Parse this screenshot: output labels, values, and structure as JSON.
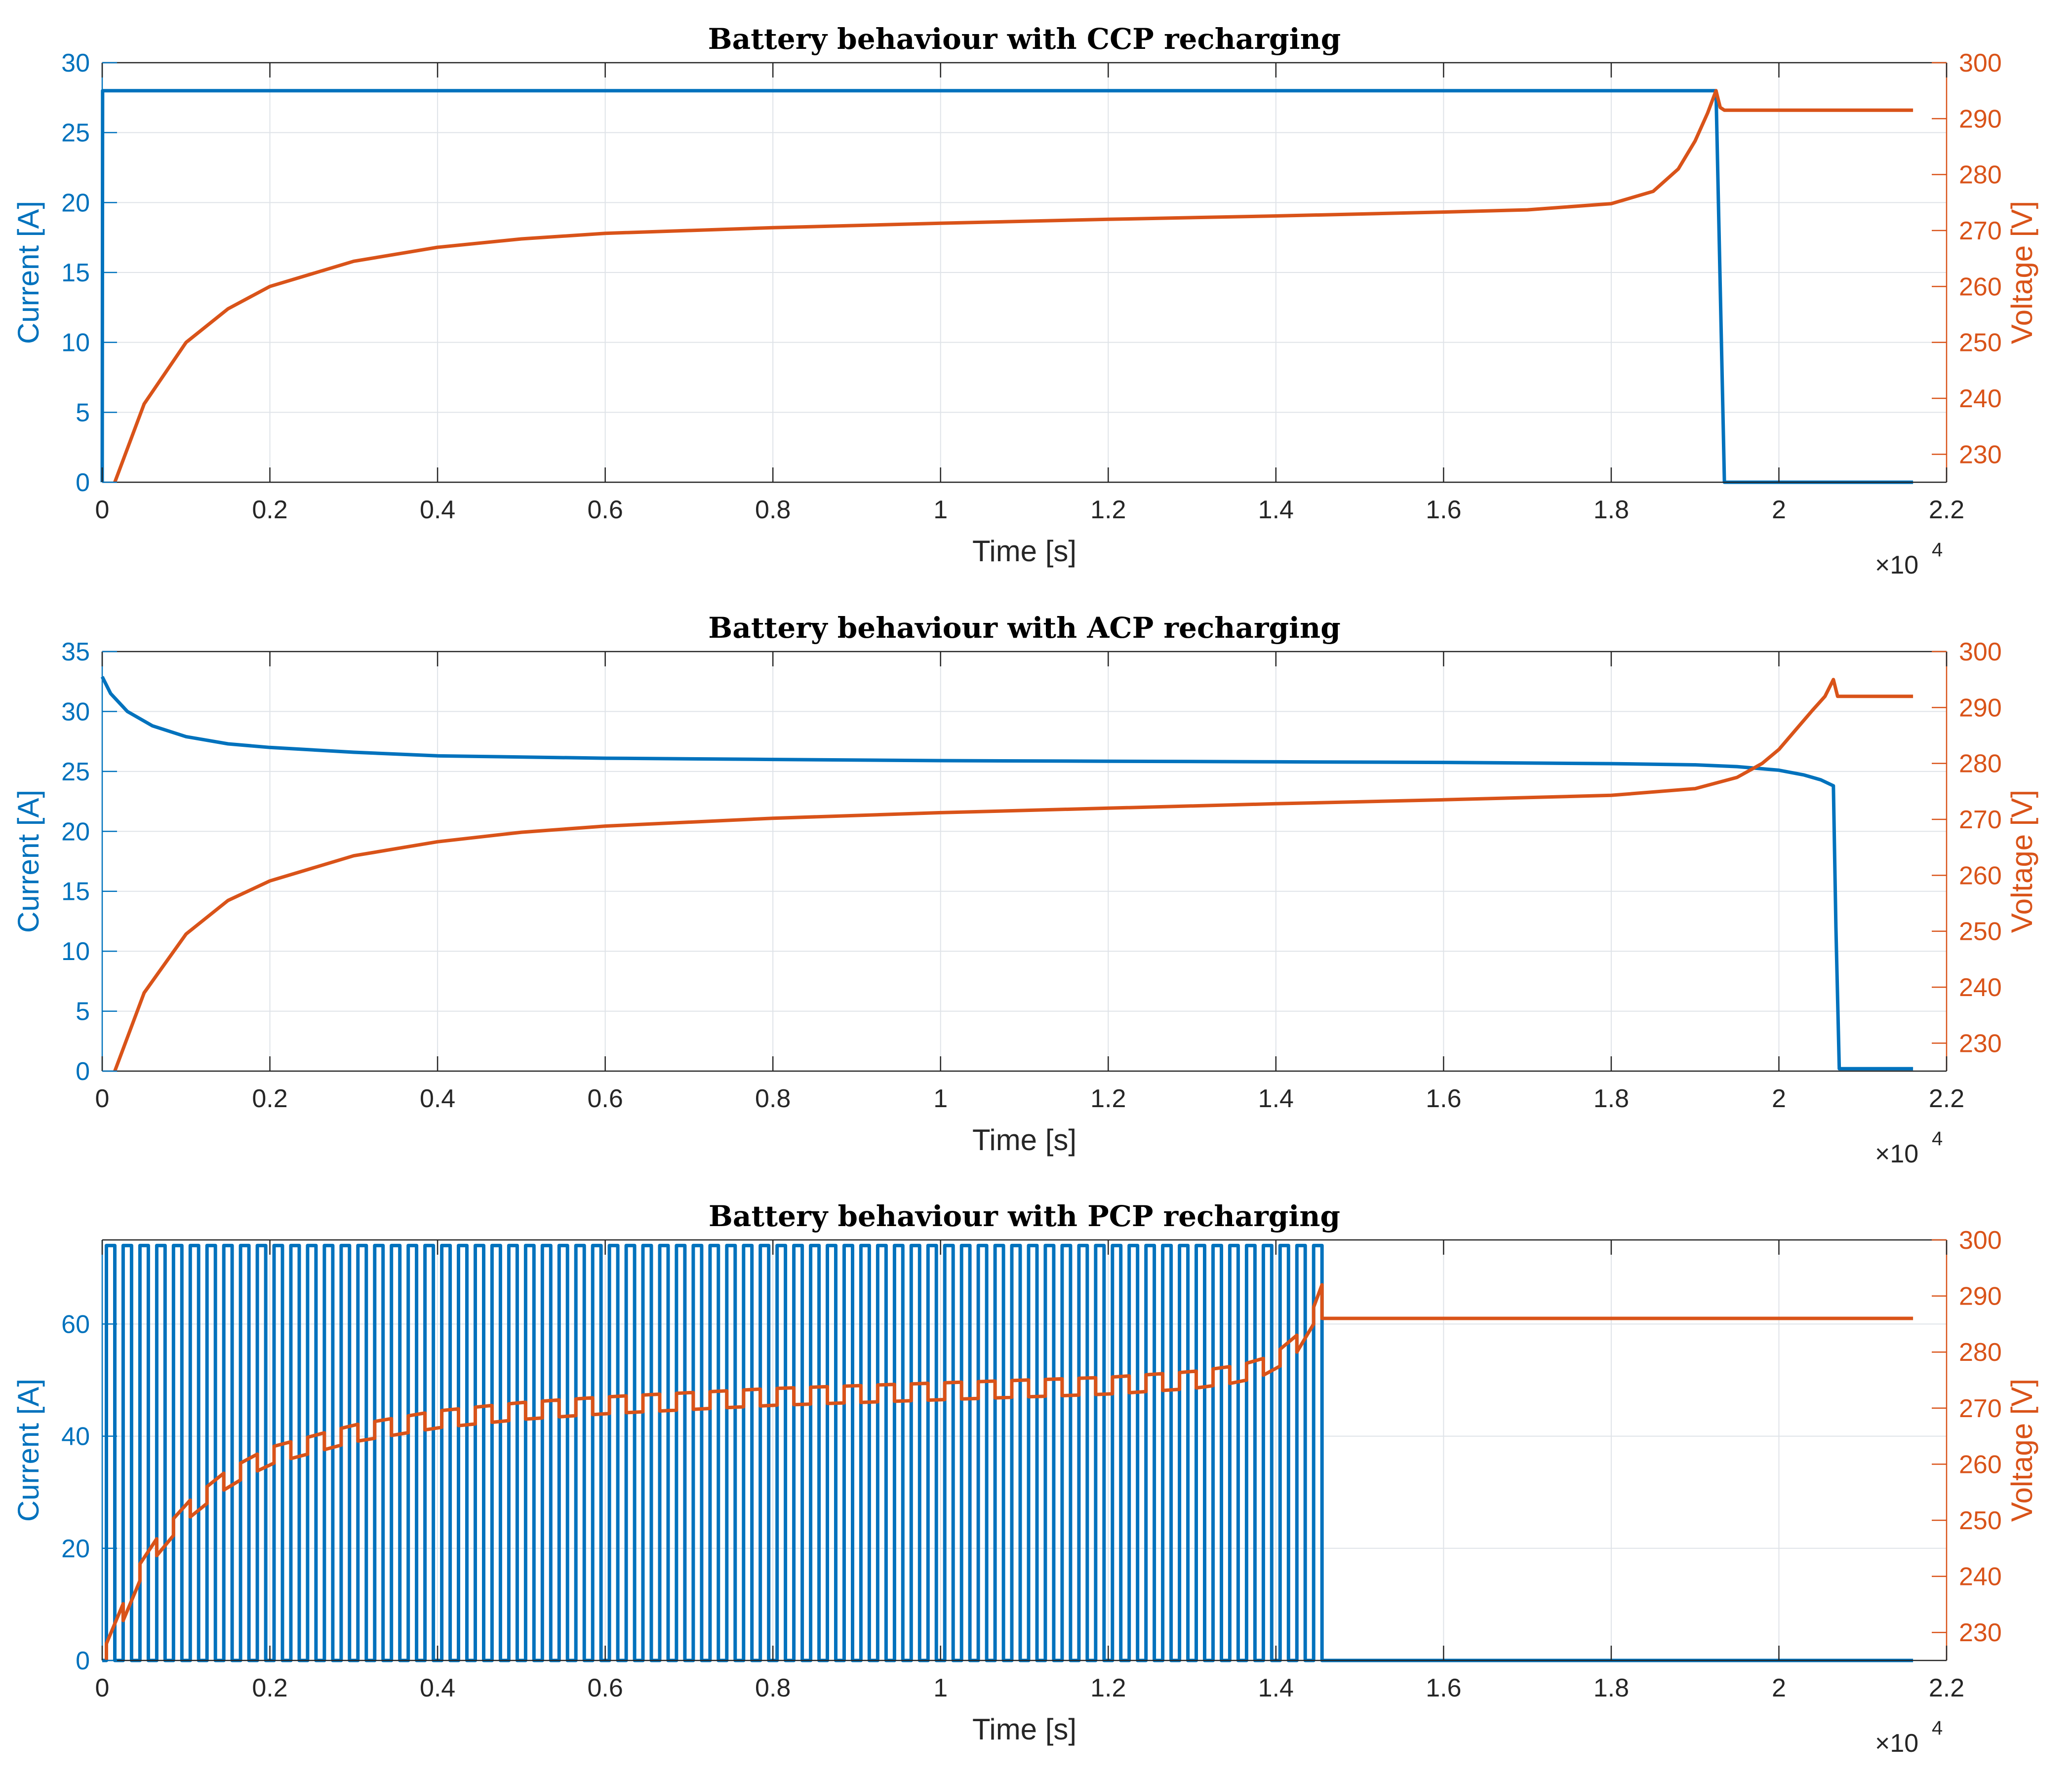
{
  "colors": {
    "current": "#0072BD",
    "voltage": "#D95319",
    "grid": "#dfe3e8",
    "axis": "#262626"
  },
  "chart_data": [
    {
      "type": "line",
      "title": "Battery behaviour with CCP recharging",
      "xlabel": "Time [s]",
      "x_exponent_label": "×10",
      "x_exponent_power": "4",
      "ylabel_left": "Current [A]",
      "ylabel_right": "Voltage [V]",
      "xlim": [
        0,
        2.2
      ],
      "xticks": [
        "0",
        "0.2",
        "0.4",
        "0.6",
        "0.8",
        "1",
        "1.2",
        "1.4",
        "1.6",
        "1.8",
        "2",
        "2.2"
      ],
      "ylim_left": [
        0,
        30
      ],
      "yticks_left": [
        "0",
        "5",
        "10",
        "15",
        "20",
        "25",
        "30"
      ],
      "ylim_right": [
        225,
        300
      ],
      "yticks_right": [
        "230",
        "240",
        "250",
        "260",
        "270",
        "280",
        "290",
        "300"
      ],
      "grid": true,
      "series": [
        {
          "axis": "left",
          "color_key": "current",
          "x": [
            0,
            0.0005,
            0.002,
            0.5,
            1.0,
            1.5,
            1.925,
            1.93,
            1.935,
            2.16
          ],
          "y": [
            0,
            28,
            28,
            28,
            28,
            28,
            28,
            14,
            0,
            0
          ]
        },
        {
          "axis": "right",
          "color_key": "voltage",
          "x": [
            0.015,
            0.05,
            0.1,
            0.15,
            0.2,
            0.3,
            0.4,
            0.5,
            0.6,
            0.8,
            1.0,
            1.2,
            1.4,
            1.6,
            1.7,
            1.8,
            1.85,
            1.88,
            1.9,
            1.915,
            1.925,
            1.93,
            1.935,
            2.16
          ],
          "y": [
            225,
            239,
            250,
            256,
            260,
            264.5,
            267,
            268.5,
            269.5,
            270.5,
            271.3,
            272,
            272.6,
            273.3,
            273.7,
            274.8,
            277,
            281,
            286,
            291,
            295,
            292,
            291.5,
            291.5
          ]
        }
      ]
    },
    {
      "type": "line",
      "title": "Battery behaviour with ACP recharging",
      "xlabel": "Time [s]",
      "x_exponent_label": "×10",
      "x_exponent_power": "4",
      "ylabel_left": "Current [A]",
      "ylabel_right": "Voltage [V]",
      "xlim": [
        0,
        2.2
      ],
      "xticks": [
        "0",
        "0.2",
        "0.4",
        "0.6",
        "0.8",
        "1",
        "1.2",
        "1.4",
        "1.6",
        "1.8",
        "2",
        "2.2"
      ],
      "ylim_left": [
        0,
        35
      ],
      "yticks_left": [
        "0",
        "5",
        "10",
        "15",
        "20",
        "25",
        "30",
        "35"
      ],
      "ylim_right": [
        225,
        300
      ],
      "yticks_right": [
        "230",
        "240",
        "250",
        "260",
        "270",
        "280",
        "290",
        "300"
      ],
      "grid": true,
      "series": [
        {
          "axis": "left",
          "color_key": "current",
          "x": [
            0,
            0.01,
            0.03,
            0.06,
            0.1,
            0.15,
            0.2,
            0.3,
            0.4,
            0.6,
            0.8,
            1.0,
            1.2,
            1.4,
            1.6,
            1.8,
            1.9,
            1.95,
            2.0,
            2.03,
            2.05,
            2.065,
            2.068,
            2.072,
            2.16
          ],
          "y": [
            32.9,
            31.5,
            30.0,
            28.8,
            27.9,
            27.3,
            27.0,
            26.6,
            26.3,
            26.1,
            26.0,
            25.9,
            25.85,
            25.8,
            25.75,
            25.65,
            25.55,
            25.4,
            25.1,
            24.7,
            24.3,
            23.8,
            12,
            0.2,
            0.2
          ]
        },
        {
          "axis": "right",
          "color_key": "voltage",
          "x": [
            0.015,
            0.05,
            0.1,
            0.15,
            0.2,
            0.3,
            0.4,
            0.5,
            0.6,
            0.8,
            1.0,
            1.2,
            1.4,
            1.6,
            1.8,
            1.9,
            1.95,
            1.98,
            2.0,
            2.02,
            2.04,
            2.055,
            2.065,
            2.07,
            2.08,
            2.16
          ],
          "y": [
            225,
            239,
            249.5,
            255.5,
            259,
            263.5,
            266,
            267.7,
            268.8,
            270.2,
            271.2,
            272,
            272.8,
            273.5,
            274.3,
            275.5,
            277.5,
            280,
            282.5,
            286,
            289.5,
            292,
            295,
            292,
            292,
            292
          ]
        }
      ]
    },
    {
      "type": "line",
      "title": "Battery behaviour with PCP recharging",
      "xlabel": "Time [s]",
      "x_exponent_label": "×10",
      "x_exponent_power": "4",
      "ylabel_left": "Current [A]",
      "ylabel_right": "Voltage [V]",
      "xlim": [
        0,
        2.2
      ],
      "xticks": [
        "0",
        "0.2",
        "0.4",
        "0.6",
        "0.8",
        "1",
        "1.2",
        "1.4",
        "1.6",
        "1.8",
        "2",
        "2.2"
      ],
      "ylim_left": [
        0,
        75
      ],
      "yticks_left": [
        "0",
        "20",
        "40",
        "60"
      ],
      "ylim_right": [
        225,
        300
      ],
      "yticks_right": [
        "230",
        "240",
        "250",
        "260",
        "270",
        "280",
        "290",
        "300"
      ],
      "grid": true,
      "series": [
        {
          "axis": "left",
          "color_key": "current",
          "pulse": {
            "start": 0.005,
            "period": 0.02,
            "duty": 0.5,
            "high": 74,
            "low": 0,
            "end": 1.455,
            "tail_value": 0,
            "tail_end": 2.16
          }
        },
        {
          "axis": "right",
          "color_key": "voltage",
          "pulse_envelope": {
            "start": 0.005,
            "period": 0.04,
            "end": 1.455,
            "ripple": 3,
            "tail_value": 286,
            "tail_end": 2.16
          },
          "x": [
            0.005,
            0.05,
            0.1,
            0.15,
            0.2,
            0.3,
            0.4,
            0.5,
            0.6,
            0.8,
            1.0,
            1.2,
            1.3,
            1.35,
            1.38,
            1.4,
            1.42,
            1.44,
            1.455
          ],
          "y": [
            225,
            241,
            250,
            256,
            260,
            264,
            266.5,
            268,
            269,
            270.5,
            271.5,
            272.5,
            273.5,
            274.5,
            275.5,
            277,
            279,
            283,
            289
          ]
        }
      ]
    }
  ]
}
